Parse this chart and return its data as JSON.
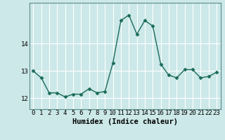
{
  "x": [
    0,
    1,
    2,
    3,
    4,
    5,
    6,
    7,
    8,
    9,
    10,
    11,
    12,
    13,
    14,
    15,
    16,
    17,
    18,
    19,
    20,
    21,
    22,
    23
  ],
  "y": [
    13.0,
    12.75,
    12.2,
    12.2,
    12.05,
    12.15,
    12.15,
    12.35,
    12.2,
    12.25,
    13.3,
    14.85,
    15.05,
    14.35,
    14.85,
    14.65,
    13.25,
    12.85,
    12.75,
    13.05,
    13.05,
    12.75,
    12.8,
    12.95
  ],
  "line_color": "#1a6b5a",
  "marker": "D",
  "marker_size": 2.5,
  "line_width": 1.0,
  "bg_color": "#cce8e8",
  "grid_color": "#ffffff",
  "xlabel": "Humidex (Indice chaleur)",
  "xlabel_fontsize": 7.5,
  "xlabel_weight": "bold",
  "yticks": [
    12,
    13,
    14
  ],
  "ylim": [
    11.6,
    15.5
  ],
  "xlim": [
    -0.5,
    23.5
  ],
  "xtick_labels": [
    "0",
    "1",
    "2",
    "3",
    "4",
    "5",
    "6",
    "7",
    "8",
    "9",
    "10",
    "11",
    "12",
    "13",
    "14",
    "15",
    "16",
    "17",
    "18",
    "19",
    "20",
    "21",
    "22",
    "23"
  ],
  "tick_fontsize": 6.5
}
